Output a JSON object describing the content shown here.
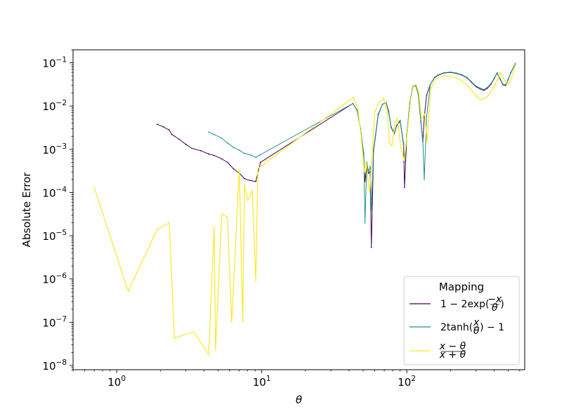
{
  "chart_data": {
    "type": "line",
    "xscale": "log",
    "yscale": "log",
    "xlim": [
      0.5,
      650
    ],
    "ylim": [
      8e-09,
      0.2
    ],
    "xlabel": "θ",
    "ylabel": "Absolute Error",
    "x_ticks": [
      {
        "value": 1,
        "base": "10",
        "exp": "0"
      },
      {
        "value": 10,
        "base": "10",
        "exp": "1"
      },
      {
        "value": 100,
        "base": "10",
        "exp": "2"
      }
    ],
    "y_ticks": [
      {
        "value": 1e-08,
        "base": "10",
        "exp": "−8"
      },
      {
        "value": 1e-07,
        "base": "10",
        "exp": "−7"
      },
      {
        "value": 1e-06,
        "base": "10",
        "exp": "−6"
      },
      {
        "value": 1e-05,
        "base": "10",
        "exp": "−5"
      },
      {
        "value": 0.0001,
        "base": "10",
        "exp": "−4"
      },
      {
        "value": 0.001,
        "base": "10",
        "exp": "−3"
      },
      {
        "value": 0.01,
        "base": "10",
        "exp": "−2"
      },
      {
        "value": 0.1,
        "base": "10",
        "exp": "−1"
      }
    ],
    "legend": {
      "title": "Mapping",
      "position": "lower right",
      "entries": [
        {
          "pre": "1 − 2exp(",
          "num": "−x",
          "den": "θ",
          "post": ")"
        },
        {
          "pre": "2tanh(",
          "num": "x",
          "den": "θ",
          "post": ") − 1"
        },
        {
          "pre": "",
          "num": "x − θ",
          "den": "x + θ",
          "post": ""
        }
      ]
    },
    "series": [
      {
        "color": "#440154",
        "x": [
          1.9,
          2.1,
          2.3,
          2.4,
          2.7,
          3.0,
          3.3,
          3.8,
          4.3,
          4.7,
          5.3,
          5.8,
          6.4,
          7.0,
          7.6,
          8.3,
          9.1,
          9.8,
          42.5,
          45.5,
          48.0,
          50.5,
          51.5,
          53.0,
          54.5,
          56.0,
          57.0,
          59.0,
          63.5,
          68.0,
          72.0,
          75.0,
          78.0,
          82.0,
          85.0,
          90.0,
          95.0,
          96.5,
          100.0,
          105.0,
          110.0,
          115.0,
          120.0,
          125.0,
          129.0,
          132.0,
          137.0,
          145.0,
          155.0,
          165.0,
          180.0,
          200.0,
          220.0,
          240.0,
          260.0,
          280.0,
          300.0,
          320.0,
          340.0,
          360.0,
          380.0,
          400.0,
          420.0,
          440.0,
          460.0,
          480.0,
          500.0,
          520.0,
          560.0
        ],
        "y": [
          0.0038,
          0.0033,
          0.0028,
          0.0022,
          0.0017,
          0.0013,
          0.00105,
          0.00093,
          0.00078,
          0.00072,
          0.0006,
          0.0005,
          0.00035,
          0.00028,
          0.00021,
          0.00019,
          0.00018,
          0.0005,
          0.0115,
          0.0078,
          0.003,
          0.0007,
          0.00018,
          0.0004,
          0.00028,
          0.0003,
          5.4e-06,
          0.0009,
          0.0062,
          0.011,
          0.012,
          0.0073,
          0.0032,
          0.0023,
          0.0035,
          0.0045,
          0.0013,
          0.00013,
          0.002,
          0.012,
          0.028,
          0.03,
          0.019,
          0.0043,
          0.0015,
          0.0055,
          0.018,
          0.031,
          0.045,
          0.052,
          0.058,
          0.06,
          0.057,
          0.052,
          0.045,
          0.035,
          0.028,
          0.025,
          0.023,
          0.026,
          0.032,
          0.043,
          0.058,
          0.042,
          0.031,
          0.03,
          0.041,
          0.058,
          0.095
        ]
      },
      {
        "color": "#21918c",
        "x": [
          4.3,
          4.7,
          5.3,
          5.8,
          6.4,
          7.0,
          7.6,
          8.3,
          9.1,
          9.8,
          42.5,
          45.5,
          48.0,
          50.5,
          51.5,
          53.0,
          54.5,
          56.0,
          57.0,
          59.0,
          63.5,
          68.0,
          72.0,
          75.0,
          78.0,
          82.0,
          85.0,
          90.0,
          95.0,
          96.5,
          100.0,
          105.0,
          110.0,
          115.0,
          120.0,
          125.0,
          129.0,
          132.0,
          137.0,
          145.0,
          155.0,
          165.0,
          180.0,
          200.0,
          220.0,
          240.0,
          260.0,
          280.0,
          300.0,
          320.0,
          340.0,
          360.0,
          380.0,
          400.0,
          420.0,
          440.0,
          460.0,
          480.0,
          500.0,
          520.0,
          560.0
        ],
        "y": [
          0.0025,
          0.0022,
          0.0018,
          0.0014,
          0.0011,
          0.00095,
          0.0008,
          0.00075,
          0.00065,
          0.00075,
          0.0115,
          0.008,
          0.003,
          0.0008,
          2e-05,
          0.0005,
          0.0003,
          0.0004,
          4e-05,
          0.001,
          0.0065,
          0.011,
          0.012,
          0.0078,
          0.0033,
          0.0024,
          0.0036,
          0.0047,
          0.0014,
          0.0005,
          0.0022,
          0.012,
          0.028,
          0.03,
          0.019,
          0.0045,
          0.0016,
          0.0002,
          0.0058,
          0.031,
          0.046,
          0.053,
          0.059,
          0.061,
          0.058,
          0.053,
          0.046,
          0.036,
          0.029,
          0.026,
          0.024,
          0.027,
          0.033,
          0.044,
          0.059,
          0.043,
          0.032,
          0.031,
          0.042,
          0.059,
          0.096
        ]
      },
      {
        "color": "#fde725",
        "x": [
          0.7,
          1.2,
          1.9,
          2.3,
          2.5,
          3.4,
          4.3,
          4.7,
          4.8,
          5.3,
          5.8,
          6.2,
          7.0,
          7.4,
          7.6,
          8.0,
          8.6,
          9.1,
          9.4,
          9.8,
          43.0,
          46.0,
          48.5,
          51.0,
          52.5,
          54.0,
          55.5,
          57.5,
          60.0,
          64.0,
          69.0,
          73.0,
          76.0,
          79.0,
          83.0,
          86.0,
          91.0,
          96.0,
          101.0,
          106.0,
          111.0,
          116.0,
          121.0,
          126.0,
          133.0,
          138.0,
          146.0,
          156.0,
          166.0,
          181.0,
          200.0,
          222.0,
          240.0,
          262.0,
          282.0,
          302.0,
          322.0,
          342.0,
          362.0,
          382.0,
          402.0,
          422.0,
          442.0,
          462.0,
          482.0,
          502.0,
          522.0,
          560.0
        ],
        "y": [
          0.00013,
          5.2e-07,
          1.4e-05,
          2e-05,
          4.3e-08,
          6e-08,
          1.8e-08,
          1.6e-05,
          2.3e-08,
          3.2e-05,
          2.7e-05,
          1e-07,
          0.00035,
          1e-07,
          0.00015,
          6.5e-05,
          0.00011,
          9e-07,
          0.00035,
          0.0004,
          0.016,
          0.0085,
          0.002,
          0.0003,
          0.00052,
          0.0002,
          0.0001,
          0.0006,
          0.007,
          0.012,
          0.015,
          0.0085,
          0.0014,
          0.0012,
          0.0042,
          0.0052,
          0.0011,
          0.00055,
          0.0025,
          0.013,
          0.03,
          0.031,
          0.02,
          0.005,
          0.0065,
          0.0015,
          0.025,
          0.04,
          0.046,
          0.05,
          0.049,
          0.044,
          0.038,
          0.03,
          0.022,
          0.017,
          0.014,
          0.015,
          0.017,
          0.022,
          0.03,
          0.042,
          0.06,
          0.045,
          0.036,
          0.032,
          0.04,
          0.09
        ]
      }
    ]
  }
}
